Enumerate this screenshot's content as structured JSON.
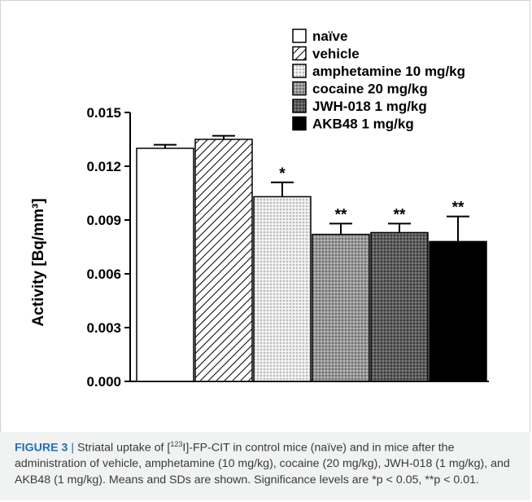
{
  "chart_data": {
    "type": "bar",
    "categories": [
      "naïve",
      "vehicle",
      "amphetamine 10 mg/kg",
      "cocaine 20 mg/kg",
      "JWH-018 1 mg/kg",
      "AKB48 1 mg/kg"
    ],
    "values": [
      0.013,
      0.0135,
      0.0103,
      0.0082,
      0.0083,
      0.0078
    ],
    "errors": [
      0.0002,
      0.0002,
      0.0008,
      0.0006,
      0.0005,
      0.0014
    ],
    "significance": [
      "",
      "",
      "*",
      "**",
      "**",
      "**"
    ],
    "ylabel": "Activity [Bq/mm³]",
    "ylim": [
      0,
      0.015
    ],
    "yticks": [
      "0.000",
      "0.003",
      "0.006",
      "0.009",
      "0.012",
      "0.015"
    ],
    "legend": [
      "naïve",
      "vehicle",
      "amphetamine 10 mg/kg",
      "cocaine 20 mg/kg",
      "JWH-018 1 mg/kg",
      "AKB48 1 mg/kg"
    ],
    "legend_position": "top-right",
    "fills": [
      "white",
      "diagonal-hatch",
      "light-dotted",
      "gray-dotted",
      "dark-dotted",
      "black"
    ],
    "grid": false
  },
  "caption": {
    "label": "FIGURE 3",
    "separator": " | ",
    "text_1": "Striatal uptake of [",
    "superscript": "123",
    "text_2": "I]-FP-CIT in control mice (naïve) and in mice after the administration of vehicle, amphetamine (10 mg/kg), cocaine (20 mg/kg), JWH-018 (1 mg/kg), and AKB48 (1 mg/kg). Means and SDs are shown. Significance levels are *p < 0.05, **p < 0.01."
  }
}
